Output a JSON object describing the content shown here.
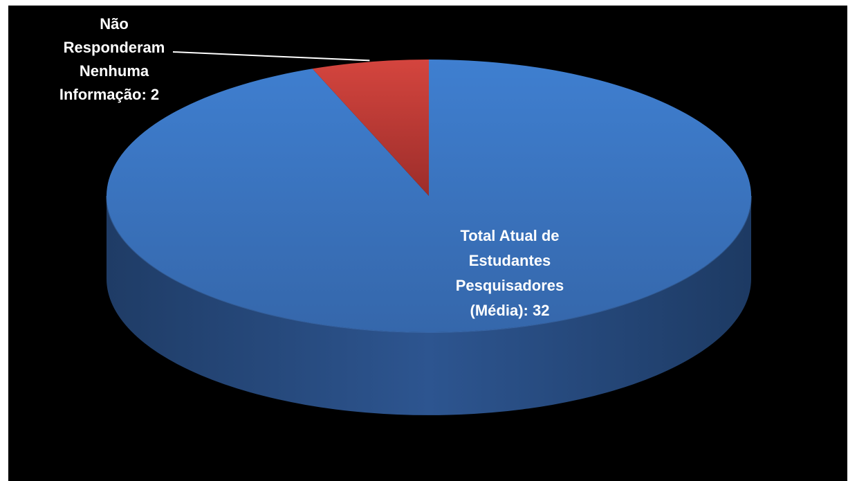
{
  "chart_data": {
    "type": "pie",
    "style": "3d",
    "start_angle_deg": 0,
    "direction": "clockwise",
    "slices": [
      {
        "label_lines": [
          "Total Atual de",
          "Estudantes",
          "Pesquisadores",
          "(Média): 32"
        ],
        "value": 32,
        "color": "#3a72be"
      },
      {
        "label_lines": [
          "Não",
          "Responderam",
          "Nenhuma",
          "Informação: 2"
        ],
        "value": 2,
        "color": "#c43a35"
      }
    ],
    "background": "#000000",
    "label_color": "#ffffff",
    "legend": "none"
  }
}
